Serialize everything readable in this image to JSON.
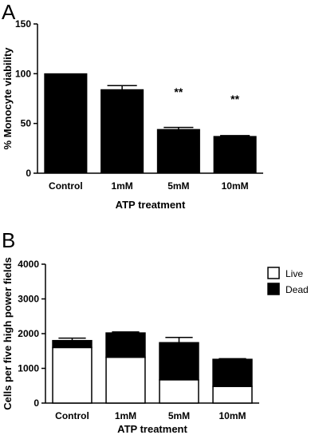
{
  "panels": [
    "A",
    "B"
  ],
  "chart_data": [
    {
      "type": "bar",
      "panel": "A",
      "categories": [
        "Control",
        "1mM",
        "5mM",
        "10mM"
      ],
      "values": [
        100,
        84,
        44,
        37
      ],
      "errors": [
        0,
        4,
        2,
        0.8
      ],
      "annotations": [
        "",
        "",
        "**",
        "**"
      ],
      "title": "",
      "xlabel": "ATP treatment",
      "ylabel": "% Monocyte viability",
      "ylim": [
        0,
        150
      ],
      "yticks": [
        0,
        50,
        100,
        150
      ],
      "colors": {
        "bar": "#000000"
      },
      "grid": false
    },
    {
      "type": "bar",
      "stacked": true,
      "panel": "B",
      "categories": [
        "Control",
        "1mM",
        "5mM",
        "10mM"
      ],
      "series": [
        {
          "name": "Live",
          "values": [
            1600,
            1320,
            670,
            480
          ],
          "color": "#ffffff"
        },
        {
          "name": "Dead",
          "values": [
            200,
            700,
            1070,
            780
          ],
          "color": "#000000"
        }
      ],
      "errors": [
        70,
        30,
        150,
        20
      ],
      "title": "",
      "xlabel": "ATP treatment",
      "ylabel": "Cells per five high power fields",
      "ylim": [
        0,
        4000
      ],
      "yticks": [
        0,
        1000,
        2000,
        3000,
        4000
      ],
      "legend": "top-right",
      "grid": false
    }
  ]
}
